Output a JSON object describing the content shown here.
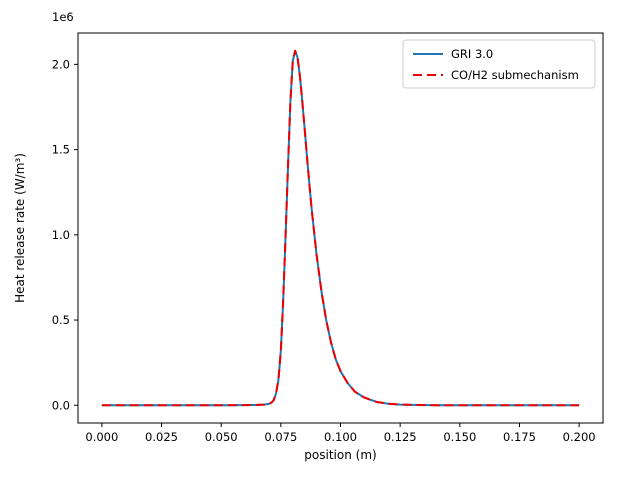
{
  "figure": {
    "background": "#ffffff"
  },
  "chart_data": {
    "type": "line",
    "title": "",
    "xlabel": "position (m)",
    "ylabel": "Heat release rate (W/m³)",
    "y_offset_label": "1e6",
    "xlim": [
      -0.01,
      0.21
    ],
    "ylim": [
      -104000,
      2184000
    ],
    "xticks": [
      0.0,
      0.025,
      0.05,
      0.075,
      0.1,
      0.125,
      0.15,
      0.175,
      0.2
    ],
    "xtick_labels": [
      "0.000",
      "0.025",
      "0.050",
      "0.075",
      "0.100",
      "0.125",
      "0.150",
      "0.175",
      "0.200"
    ],
    "yticks": [
      0,
      500000,
      1000000,
      1500000,
      2000000
    ],
    "ytick_labels": [
      "0.0",
      "0.5",
      "1.0",
      "1.5",
      "2.0"
    ],
    "grid": false,
    "legend": {
      "position": "upper right"
    },
    "x": [
      0.0,
      0.01,
      0.02,
      0.03,
      0.04,
      0.05,
      0.06,
      0.065,
      0.068,
      0.07,
      0.071,
      0.072,
      0.073,
      0.074,
      0.075,
      0.076,
      0.077,
      0.078,
      0.079,
      0.08,
      0.081,
      0.082,
      0.083,
      0.084,
      0.085,
      0.086,
      0.087,
      0.088,
      0.09,
      0.092,
      0.094,
      0.096,
      0.098,
      0.1,
      0.103,
      0.106,
      0.11,
      0.115,
      0.12,
      0.125,
      0.13,
      0.14,
      0.15,
      0.16,
      0.175,
      0.2
    ],
    "series": [
      {
        "name": "GRI 3.0",
        "color": "#1f77b4",
        "style": "solid",
        "linewidth": 2,
        "values": [
          0,
          0,
          0,
          0,
          0,
          0,
          1000,
          2000,
          4000,
          8000,
          15000,
          30000,
          70000,
          150000,
          320000,
          620000,
          1000000,
          1400000,
          1780000,
          2020000,
          2080000,
          2040000,
          1930000,
          1780000,
          1620000,
          1450000,
          1290000,
          1140000,
          880000,
          670000,
          500000,
          370000,
          270000,
          200000,
          130000,
          80000,
          45000,
          20000,
          9000,
          4000,
          2000,
          500,
          0,
          0,
          0,
          0
        ]
      },
      {
        "name": "CO/H2 submechanism",
        "color": "#ee0000",
        "style": "dashed",
        "linewidth": 2,
        "values": [
          0,
          0,
          0,
          0,
          0,
          0,
          1000,
          2000,
          4000,
          8000,
          15000,
          30000,
          70000,
          150000,
          320000,
          620000,
          1000000,
          1400000,
          1780000,
          2020000,
          2080000,
          2040000,
          1930000,
          1780000,
          1620000,
          1450000,
          1290000,
          1140000,
          880000,
          670000,
          500000,
          370000,
          270000,
          200000,
          130000,
          80000,
          45000,
          20000,
          9000,
          4000,
          2000,
          500,
          0,
          0,
          0,
          0
        ]
      }
    ]
  }
}
